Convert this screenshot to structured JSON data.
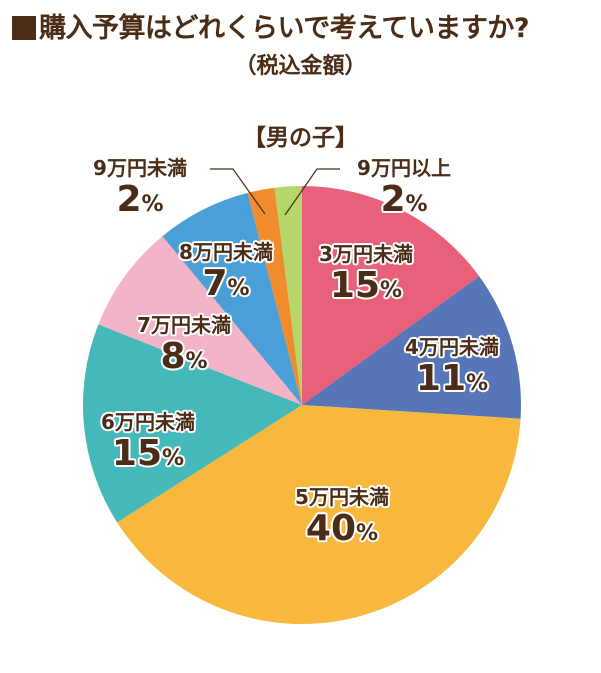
{
  "header": {
    "title": "購入予算はどれくらいで考えていますか?",
    "subtitle": "（税込金額）",
    "group": "【男の子】"
  },
  "colors": {
    "text": "#4a2c17",
    "slice_3": "#e8607a",
    "slice_4": "#5676b8",
    "slice_5": "#f8b83e",
    "slice_6": "#45b8b9",
    "slice_7": "#f2b4c6",
    "slice_8": "#4aa0d6",
    "slice_9u": "#f08c2c",
    "slice_9o": "#b5d66a"
  },
  "chart_data": {
    "type": "pie",
    "title": "購入予算はどれくらいで考えていますか?（税込金額）",
    "subtitle": "【男の子】",
    "start_angle": "12 o'clock, clockwise",
    "categories": [
      "3万円未満",
      "4万円未満",
      "5万円未満",
      "6万円未満",
      "7万円未満",
      "8万円未満",
      "9万円未満",
      "9万円以上"
    ],
    "values": [
      15,
      11,
      40,
      15,
      8,
      7,
      2,
      2
    ],
    "unit": "%",
    "colors": [
      "#e8607a",
      "#5676b8",
      "#f8b83e",
      "#45b8b9",
      "#f2b4c6",
      "#4aa0d6",
      "#f08c2c",
      "#b5d66a"
    ]
  },
  "labels": [
    {
      "name": "3万円未満",
      "pct": "15",
      "unit": "%"
    },
    {
      "name": "4万円未満",
      "pct": "11",
      "unit": "%"
    },
    {
      "name": "5万円未満",
      "pct": "40",
      "unit": "%"
    },
    {
      "name": "6万円未満",
      "pct": "15",
      "unit": "%"
    },
    {
      "name": "7万円未満",
      "pct": "8",
      "unit": "%"
    },
    {
      "name": "8万円未満",
      "pct": "7",
      "unit": "%"
    },
    {
      "name": "9万円未満",
      "pct": "2",
      "unit": "%"
    },
    {
      "name": "9万円以上",
      "pct": "2",
      "unit": "%"
    }
  ]
}
